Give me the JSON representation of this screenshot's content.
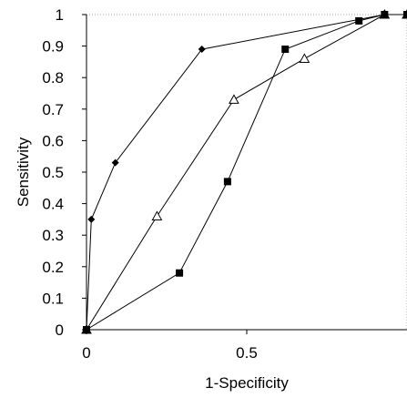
{
  "chart_data": {
    "type": "line",
    "title": "",
    "xlabel": "1-Specificity",
    "ylabel": "Sensitivity",
    "xlim": [
      0,
      1
    ],
    "ylim": [
      0,
      1
    ],
    "x_ticks": [
      "0",
      "0.5"
    ],
    "x_tick_values": [
      0,
      0.5
    ],
    "y_ticks": [
      "0",
      "0.1",
      "0.2",
      "0.3",
      "0.4",
      "0.5",
      "0.6",
      "0.7",
      "0.8",
      "0.9",
      "1"
    ],
    "y_tick_values": [
      0,
      0.1,
      0.2,
      0.3,
      0.4,
      0.5,
      0.6,
      0.7,
      0.8,
      0.9,
      1
    ],
    "grid": false,
    "legend": "none",
    "series": [
      {
        "marker": "diamond",
        "color": "#000000",
        "x": [
          0,
          0.015,
          0.09,
          0.36,
          0.93,
          1.0
        ],
        "y": [
          0,
          0.35,
          0.53,
          0.89,
          1.0,
          1.0
        ]
      },
      {
        "marker": "triangle-open",
        "color": "#000000",
        "x": [
          0,
          0.22,
          0.46,
          0.68,
          0.93,
          1.0
        ],
        "y": [
          0,
          0.36,
          0.73,
          0.86,
          1.0,
          1.0
        ]
      },
      {
        "marker": "square",
        "color": "#000000",
        "x": [
          0,
          0.29,
          0.44,
          0.62,
          0.85,
          0.93,
          1.0
        ],
        "y": [
          0,
          0.18,
          0.47,
          0.89,
          0.98,
          1.0,
          1.0
        ]
      }
    ]
  }
}
